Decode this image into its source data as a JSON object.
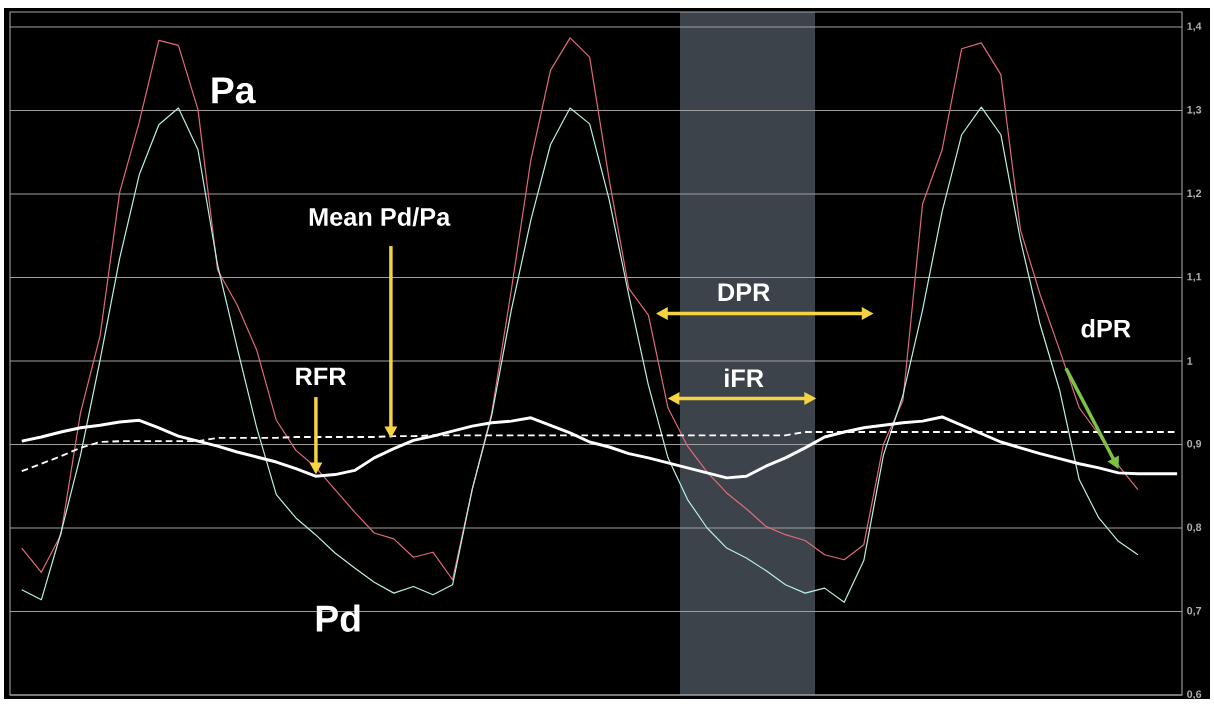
{
  "chart_data": {
    "type": "line",
    "categories": [
      null,
      null,
      null,
      null,
      null,
      null,
      null,
      null,
      null,
      null,
      null,
      null,
      null,
      null,
      null,
      null,
      null,
      null,
      null,
      null,
      null,
      null,
      null,
      null,
      null,
      null,
      null,
      null,
      null,
      null,
      null,
      null,
      null,
      null,
      null,
      null,
      null,
      null,
      null,
      null,
      null,
      null,
      null,
      null,
      null,
      null,
      null,
      null,
      null,
      null,
      null,
      null,
      null,
      null,
      null,
      null,
      null,
      null,
      null,
      null
    ],
    "series": [
      {
        "name": "Pa",
        "color": "#e06a78",
        "line_style": "solid",
        "values": [
          0.776,
          0.747,
          0.792,
          0.938,
          1.03,
          1.202,
          1.286,
          1.384,
          1.378,
          1.301,
          1.109,
          1.067,
          1.013,
          0.929,
          0.893,
          0.873,
          0.846,
          0.819,
          0.794,
          0.787,
          0.765,
          0.771,
          0.738,
          0.846,
          0.938,
          1.085,
          1.241,
          1.348,
          1.387,
          1.364,
          1.217,
          1.087,
          1.055,
          0.944,
          0.898,
          0.867,
          0.842,
          0.823,
          0.802,
          0.792,
          0.785,
          0.768,
          0.762,
          0.78,
          0.9,
          0.953,
          1.188,
          1.253,
          1.374,
          1.381,
          1.343,
          1.157,
          1.08,
          1.013,
          0.944,
          0.912,
          0.875,
          0.846,
          null,
          null
        ]
      },
      {
        "name": "Pd",
        "color": "#b8f0e6",
        "line_style": "solid",
        "values": [
          0.726,
          0.714,
          0.794,
          0.887,
          1.001,
          1.123,
          1.223,
          1.283,
          1.303,
          1.253,
          1.115,
          1.016,
          0.92,
          0.84,
          0.812,
          0.792,
          0.77,
          0.752,
          0.735,
          0.722,
          0.73,
          0.72,
          0.732,
          0.846,
          0.935,
          1.061,
          1.169,
          1.259,
          1.303,
          1.284,
          1.193,
          1.079,
          0.971,
          0.884,
          0.834,
          0.8,
          0.776,
          0.764,
          0.749,
          0.732,
          0.722,
          0.728,
          0.711,
          0.761,
          0.887,
          0.959,
          1.061,
          1.179,
          1.271,
          1.304,
          1.271,
          1.145,
          1.044,
          0.965,
          0.858,
          0.812,
          0.784,
          0.768,
          null,
          null
        ]
      },
      {
        "color": "#ffffff",
        "line_style": "solid",
        "values": [
          0.904,
          0.909,
          0.915,
          0.92,
          0.923,
          0.927,
          0.929,
          0.92,
          0.91,
          0.904,
          0.898,
          0.891,
          0.885,
          0.879,
          0.871,
          0.862,
          0.864,
          0.869,
          0.884,
          0.895,
          0.905,
          0.91,
          0.916,
          0.922,
          0.926,
          0.928,
          0.932,
          0.923,
          0.914,
          0.903,
          0.897,
          0.889,
          0.884,
          0.878,
          0.872,
          0.866,
          0.86,
          0.862,
          0.874,
          0.884,
          0.896,
          0.909,
          0.915,
          0.92,
          0.923,
          0.926,
          0.928,
          0.933,
          0.923,
          0.913,
          0.903,
          0.896,
          0.889,
          0.883,
          0.877,
          0.872,
          0.866,
          0.865,
          0.865,
          0.865
        ]
      },
      {
        "name": "Mean Pd/Pa",
        "color": "#ffffff",
        "line_style": "dashed",
        "values": [
          0.868,
          0.877,
          0.886,
          0.896,
          0.903,
          0.904,
          0.904,
          0.904,
          0.904,
          0.904,
          0.908,
          0.908,
          0.908,
          0.908,
          0.909,
          0.909,
          0.909,
          0.909,
          0.909,
          0.91,
          0.91,
          0.911,
          0.911,
          0.911,
          0.911,
          0.911,
          0.911,
          0.911,
          0.911,
          0.911,
          0.911,
          0.911,
          0.911,
          0.911,
          0.911,
          0.911,
          0.911,
          0.911,
          0.911,
          0.911,
          0.915,
          0.915,
          0.915,
          0.915,
          0.915,
          0.915,
          0.915,
          0.915,
          0.915,
          0.915,
          0.915,
          0.915,
          0.915,
          0.915,
          0.915,
          0.915,
          0.915,
          0.915,
          0.915,
          0.915
        ]
      }
    ],
    "ylim": [
      0.6,
      1.4
    ],
    "yticks": [
      {
        "value": 0.6,
        "label": "0,6"
      },
      {
        "value": 0.7,
        "label": "0,7"
      },
      {
        "value": 0.8,
        "label": "0,8"
      },
      {
        "value": 0.9,
        "label": "0,9"
      },
      {
        "value": 1,
        "label": "1"
      },
      {
        "value": 1.1,
        "label": "1,1"
      },
      {
        "value": 1.2,
        "label": "1,2"
      },
      {
        "value": 1.3,
        "label": "1,3"
      },
      {
        "value": 1.4,
        "label": "1,4"
      }
    ],
    "tick_labels": "y",
    "grid": "y",
    "annotations": [
      "RFR",
      "DPR",
      "iFR",
      "dPR"
    ]
  }
}
